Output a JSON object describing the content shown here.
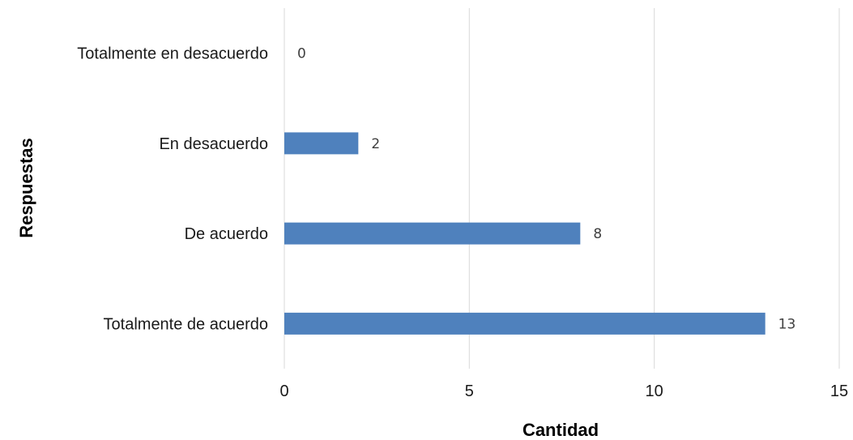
{
  "chart_data": {
    "type": "bar",
    "orientation": "horizontal",
    "categories": [
      "Totalmente en desacuerdo",
      "En desacuerdo",
      "De acuerdo",
      "Totalmente de acuerdo"
    ],
    "values": [
      0,
      2,
      8,
      13
    ],
    "data_labels": [
      "0",
      "2",
      "8",
      "13"
    ],
    "xlabel": "Cantidad",
    "ylabel": "Respuestas",
    "xlim": [
      0,
      15
    ],
    "x_ticks": [
      "0",
      "5",
      "10",
      "15"
    ],
    "grid": "vertical",
    "legend": "none",
    "bar_color": "#4f81bd"
  }
}
